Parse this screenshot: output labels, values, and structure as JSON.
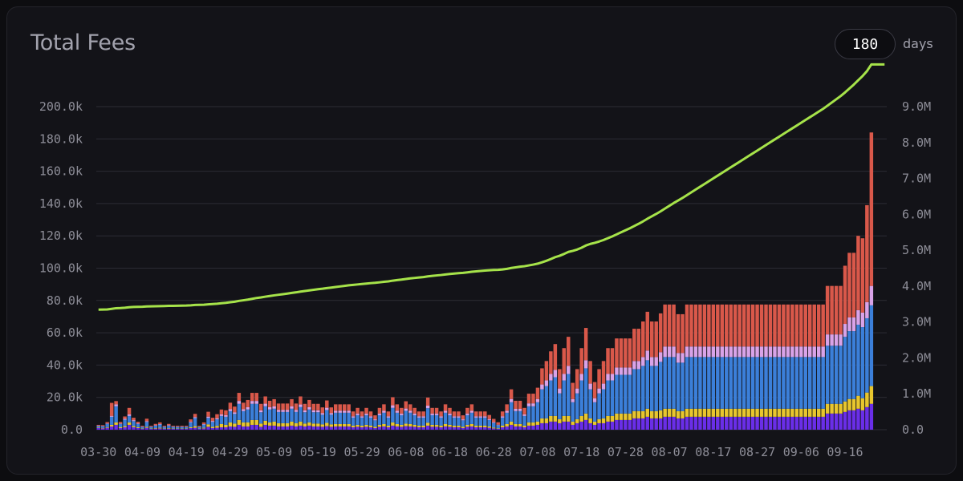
{
  "header": {
    "title": "Total Fees",
    "range_value": "180",
    "range_unit": "days"
  },
  "chart_data": {
    "type": "bar",
    "title": "Total Fees",
    "x_tick_labels": [
      "03-30",
      "04-09",
      "04-19",
      "04-29",
      "05-09",
      "05-19",
      "05-29",
      "06-08",
      "06-18",
      "06-28",
      "07-08",
      "07-18",
      "07-28",
      "08-07",
      "08-17",
      "08-27",
      "09-06",
      "09-16"
    ],
    "y_left_ticks": [
      "0.0",
      "20.0k",
      "40.0k",
      "60.0k",
      "80.0k",
      "100.0k",
      "120.0k",
      "140.0k",
      "160.0k",
      "180.0k",
      "200.0k"
    ],
    "y_right_ticks": [
      "0.0",
      "1.0M",
      "2.0M",
      "3.0M",
      "4.0M",
      "5.0M",
      "6.0M",
      "7.0M",
      "8.0M",
      "9.0M"
    ],
    "ylim_left": [
      0,
      200000
    ],
    "ylim_right": [
      0,
      9000000
    ],
    "grid": true,
    "n_days": 180,
    "x_first": "03-30",
    "x_last": "09-25",
    "colors": {
      "stack": [
        "#6a2ee8",
        "#e8c62e",
        "#3b7fd9",
        "#d9a3e8",
        "#d9584a"
      ],
      "cumulative": "#a6e34a",
      "grid": "#2c2c34"
    },
    "series": [
      {
        "name": "",
        "type": "bar",
        "values": [
          1000,
          800,
          1200,
          2000,
          3000,
          1000,
          1500,
          3000,
          1500,
          1000,
          500,
          1200,
          500,
          700,
          800,
          500,
          700,
          500,
          500,
          500,
          500,
          1000,
          1200,
          500,
          800,
          1800,
          1000,
          1200,
          1500,
          1500,
          2000,
          1800,
          3000,
          2000,
          2000,
          3000,
          3000,
          1800,
          3000,
          2500,
          2500,
          2000,
          2000,
          2000,
          2500,
          2000,
          2500,
          2000,
          2500,
          2000,
          2000,
          1800,
          2200,
          1800,
          2000,
          2000,
          2000,
          2000,
          1500,
          1800,
          1500,
          1800,
          1500,
          1000,
          1800,
          2000,
          1500,
          2500,
          2000,
          1800,
          2200,
          2000,
          1800,
          1500,
          1500,
          2500,
          1800,
          1800,
          1500,
          2000,
          1800,
          1500,
          1500,
          1000,
          1800,
          2000,
          1500,
          1500,
          1500,
          1200,
          800,
          500,
          1500,
          2000,
          3000,
          2000,
          2000,
          1500,
          2500,
          2500,
          3000,
          4000,
          4000,
          5000,
          5000,
          4000,
          5000,
          5000,
          3000,
          4000,
          5000,
          6000,
          4000,
          3000,
          4000,
          4000,
          5000,
          5000,
          6000,
          6000,
          6000,
          6000,
          7000,
          7000,
          7000,
          8000,
          7000,
          7000,
          7000,
          8000,
          8000,
          8000,
          7000,
          7000,
          8000,
          8000,
          8000,
          8000,
          8000,
          8000,
          8000,
          8000,
          8000,
          8000,
          8000,
          8000,
          8000,
          8000,
          8000,
          8000,
          8000,
          8000,
          8000,
          8000,
          8000,
          8000,
          8000,
          8000,
          8000,
          8000,
          8000,
          8000,
          8000,
          8000,
          8000,
          8000,
          10000,
          10000,
          10000,
          10000,
          11000,
          12000,
          12000,
          13000,
          12000,
          14000,
          16000
        ]
      },
      {
        "name": "",
        "type": "bar",
        "values": [
          300,
          300,
          400,
          1000,
          1500,
          500,
          700,
          1500,
          800,
          500,
          200,
          600,
          200,
          300,
          400,
          200,
          300,
          200,
          200,
          200,
          200,
          500,
          1000,
          200,
          400,
          1500,
          800,
          1200,
          2000,
          1500,
          2500,
          2000,
          3000,
          2500,
          2500,
          3000,
          3000,
          2000,
          2500,
          2000,
          2500,
          2000,
          2000,
          2000,
          2500,
          2000,
          2500,
          1800,
          2000,
          1800,
          1800,
          1500,
          2000,
          1500,
          1500,
          1500,
          1500,
          1500,
          1000,
          1200,
          1000,
          1200,
          1000,
          800,
          1200,
          1500,
          1000,
          2000,
          1500,
          1200,
          1500,
          1500,
          1200,
          1000,
          1000,
          1800,
          1200,
          1200,
          1000,
          1500,
          1200,
          1000,
          1000,
          800,
          1200,
          1500,
          1000,
          1000,
          1000,
          800,
          500,
          300,
          1000,
          1500,
          2000,
          1500,
          1500,
          1000,
          2000,
          2000,
          2000,
          3000,
          3000,
          3500,
          3500,
          2500,
          3500,
          3500,
          2000,
          2500,
          3500,
          4000,
          3000,
          2000,
          2500,
          3000,
          3500,
          3500,
          4000,
          4000,
          4000,
          4000,
          4500,
          4500,
          4500,
          5000,
          4500,
          4500,
          5000,
          5000,
          5000,
          5000,
          4500,
          4500,
          5000,
          5000,
          5000,
          5000,
          5000,
          5000,
          5000,
          5000,
          5000,
          5000,
          5000,
          5000,
          5000,
          5000,
          5000,
          5000,
          5000,
          5000,
          5000,
          5000,
          5000,
          5000,
          5000,
          5000,
          5000,
          5000,
          5000,
          5000,
          5000,
          5000,
          5000,
          5000,
          6000,
          6000,
          6000,
          6000,
          6500,
          7000,
          7000,
          8000,
          7500,
          9000,
          11000
        ]
      },
      {
        "name": "",
        "type": "bar",
        "values": [
          1000,
          1000,
          2000,
          5000,
          10000,
          2000,
          4000,
          4000,
          3000,
          2000,
          1000,
          3000,
          1000,
          1500,
          2000,
          1000,
          1500,
          1000,
          1000,
          1000,
          1000,
          3000,
          5000,
          1000,
          2000,
          4000,
          3000,
          4000,
          5000,
          5000,
          7000,
          6000,
          10000,
          7000,
          8000,
          10000,
          10000,
          7000,
          9000,
          8000,
          8000,
          7000,
          7000,
          7000,
          8000,
          7000,
          9000,
          7000,
          8000,
          7000,
          7000,
          6000,
          8000,
          6000,
          7000,
          7000,
          7000,
          7000,
          5000,
          6000,
          5000,
          6000,
          5000,
          4000,
          6000,
          7000,
          5000,
          9000,
          7000,
          6000,
          8000,
          7000,
          6000,
          5000,
          5000,
          9000,
          6000,
          6000,
          5000,
          7000,
          6000,
          5000,
          5000,
          4000,
          6000,
          7000,
          5000,
          5000,
          5000,
          4000,
          3000,
          2000,
          5000,
          7000,
          12000,
          8000,
          8000,
          6000,
          10000,
          10000,
          12000,
          18000,
          20000,
          22000,
          24000,
          16000,
          22000,
          26000,
          12000,
          16000,
          22000,
          28000,
          18000,
          12000,
          16000,
          18000,
          22000,
          22000,
          24000,
          24000,
          24000,
          24000,
          26000,
          26000,
          28000,
          30000,
          28000,
          28000,
          30000,
          32000,
          32000,
          32000,
          30000,
          30000,
          32000,
          32000,
          32000,
          32000,
          32000,
          32000,
          32000,
          32000,
          32000,
          32000,
          32000,
          32000,
          32000,
          32000,
          32000,
          32000,
          32000,
          32000,
          32000,
          32000,
          32000,
          32000,
          32000,
          32000,
          32000,
          32000,
          32000,
          32000,
          32000,
          32000,
          32000,
          32000,
          36000,
          36000,
          36000,
          36000,
          40000,
          42000,
          42000,
          44000,
          44000,
          46000,
          50000
        ]
      },
      {
        "name": "",
        "type": "bar",
        "values": [
          200,
          200,
          300,
          600,
          1200,
          300,
          500,
          1000,
          600,
          400,
          200,
          500,
          200,
          300,
          300,
          200,
          300,
          200,
          200,
          200,
          200,
          400,
          600,
          200,
          300,
          800,
          600,
          700,
          1000,
          1000,
          1200,
          1000,
          1800,
          1200,
          1400,
          1800,
          1800,
          1200,
          1600,
          1400,
          1400,
          1200,
          1200,
          1200,
          1400,
          1200,
          1600,
          1200,
          1400,
          1200,
          1200,
          1000,
          1400,
          1000,
          1200,
          1200,
          1200,
          1200,
          800,
          1000,
          800,
          1000,
          800,
          600,
          1000,
          1200,
          800,
          1600,
          1200,
          1000,
          1400,
          1200,
          1000,
          800,
          800,
          1600,
          1000,
          1000,
          800,
          1200,
          1000,
          800,
          800,
          600,
          1000,
          1200,
          800,
          800,
          800,
          600,
          400,
          300,
          800,
          1200,
          2000,
          1400,
          1400,
          1000,
          1800,
          1800,
          2000,
          3000,
          3500,
          4000,
          4500,
          3000,
          4000,
          5000,
          2000,
          3000,
          4000,
          5000,
          3500,
          2500,
          3000,
          3500,
          4000,
          4000,
          4500,
          4500,
          4500,
          4500,
          5000,
          5000,
          5500,
          6000,
          5500,
          5500,
          6000,
          6500,
          6500,
          6500,
          6000,
          6000,
          6500,
          6500,
          6500,
          6500,
          6500,
          6500,
          6500,
          6500,
          6500,
          6500,
          6500,
          6500,
          6500,
          6500,
          6500,
          6500,
          6500,
          6500,
          6500,
          6500,
          6500,
          6500,
          6500,
          6500,
          6500,
          6500,
          6500,
          6500,
          6500,
          6500,
          6500,
          6500,
          7000,
          7000,
          7000,
          7000,
          8000,
          8500,
          8500,
          9000,
          9000,
          10000,
          12000
        ]
      },
      {
        "name": "",
        "type": "bar",
        "values": [
          500,
          500,
          800,
          8000,
          2000,
          1000,
          1500,
          4000,
          1500,
          1000,
          500,
          1500,
          500,
          800,
          1000,
          500,
          800,
          500,
          500,
          500,
          500,
          1500,
          2000,
          500,
          1000,
          3000,
          2000,
          2500,
          3000,
          3000,
          4000,
          3500,
          5000,
          4000,
          4500,
          5000,
          5000,
          4000,
          4500,
          4000,
          4500,
          4000,
          4000,
          4000,
          4500,
          4000,
          5000,
          4000,
          4500,
          4000,
          4000,
          3500,
          4500,
          3500,
          4000,
          4000,
          4000,
          4000,
          3000,
          3500,
          3000,
          3500,
          3000,
          2500,
          3500,
          4000,
          3000,
          5000,
          4000,
          3500,
          4500,
          4000,
          3500,
          3000,
          3000,
          5000,
          3500,
          3500,
          3000,
          4000,
          3500,
          3000,
          3000,
          2500,
          3500,
          4000,
          3000,
          3000,
          3000,
          2500,
          2000,
          1500,
          3000,
          4000,
          6000,
          5000,
          5000,
          4000,
          6000,
          6000,
          7000,
          10000,
          12000,
          14000,
          16000,
          12000,
          16000,
          18000,
          10000,
          12000,
          16000,
          20000,
          14000,
          10000,
          12000,
          14000,
          16000,
          16000,
          18000,
          18000,
          18000,
          18000,
          20000,
          20000,
          22000,
          24000,
          22000,
          22000,
          24000,
          26000,
          26000,
          26000,
          24000,
          24000,
          26000,
          26000,
          26000,
          26000,
          26000,
          26000,
          26000,
          26000,
          26000,
          26000,
          26000,
          26000,
          26000,
          26000,
          26000,
          26000,
          26000,
          26000,
          26000,
          26000,
          26000,
          26000,
          26000,
          26000,
          26000,
          26000,
          26000,
          26000,
          26000,
          26000,
          26000,
          26000,
          30000,
          30000,
          30000,
          30000,
          36000,
          40000,
          40000,
          46000,
          46000,
          60000,
          95000
        ]
      }
    ]
  }
}
